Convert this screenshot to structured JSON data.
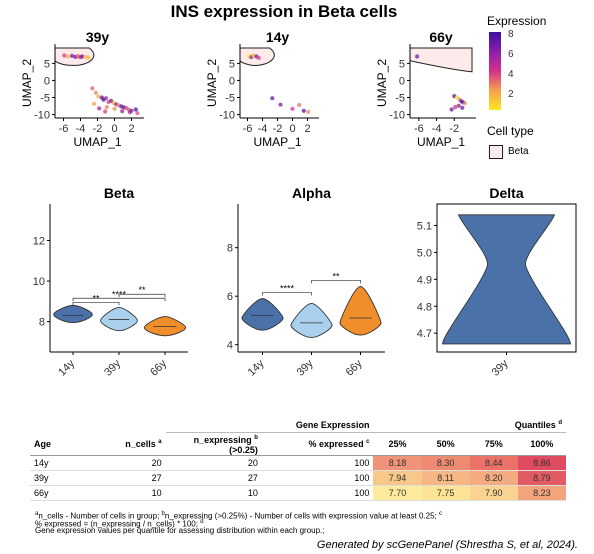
{
  "title": "INS expression in Beta cells",
  "umap_panels": [
    {
      "title": "39y"
    },
    {
      "title": "14y"
    },
    {
      "title": "66y"
    }
  ],
  "umap_xlabel": "UMAP_1",
  "umap_ylabel": "UMAP_2",
  "legend": {
    "expression_title": "Expression",
    "expression_ticks": [
      "8",
      "6",
      "4",
      "2"
    ],
    "celltype_title": "Cell type",
    "celltype_item": "Beta",
    "colors": {
      "low": "#fde725",
      "mid": "#d4308c",
      "high": "#3b0fa3"
    }
  },
  "violin_panels": [
    {
      "title": "Beta"
    },
    {
      "title": "Alpha"
    },
    {
      "title": "Delta"
    }
  ],
  "colors": {
    "14y": "#4a72a8",
    "39y": "#a9d1ee",
    "66y": "#ef8e2b",
    "delta": "#4a72a8"
  },
  "chart_data": [
    {
      "type": "scatter",
      "title": "39y",
      "xlabel": "UMAP_1",
      "ylabel": "UMAP_2",
      "xticks": [
        "-6",
        "-4",
        "-2",
        "0",
        "2"
      ],
      "yticks": [
        "5",
        "0",
        "-5",
        "-10"
      ],
      "xlim": [
        -7,
        3
      ],
      "ylim": [
        -11,
        9.5
      ],
      "points": [
        {
          "x": -5.9,
          "y": 7.3,
          "e": 4.6
        },
        {
          "x": -5.5,
          "y": 7.0,
          "e": 2.2
        },
        {
          "x": -5.0,
          "y": 7.2,
          "e": 6.9
        },
        {
          "x": -4.6,
          "y": 6.9,
          "e": 7.4
        },
        {
          "x": -4.3,
          "y": 7.1,
          "e": 3.8
        },
        {
          "x": -4.0,
          "y": 6.8,
          "e": 5.2
        },
        {
          "x": -3.8,
          "y": 7.0,
          "e": 7.3
        },
        {
          "x": -3.4,
          "y": 6.9,
          "e": 1.7
        },
        {
          "x": -3.1,
          "y": 6.7,
          "e": 2.1
        },
        {
          "x": -2.6,
          "y": -2.3,
          "e": 3.8
        },
        {
          "x": -2.2,
          "y": -3.6,
          "e": 3.0
        },
        {
          "x": -1.9,
          "y": -4.7,
          "e": 2.2
        },
        {
          "x": -1.5,
          "y": -5.0,
          "e": 7.4
        },
        {
          "x": -1.3,
          "y": -5.6,
          "e": 8.4
        },
        {
          "x": -1.0,
          "y": -5.2,
          "e": 6.1
        },
        {
          "x": -0.7,
          "y": -6.3,
          "e": 4.4
        },
        {
          "x": -0.4,
          "y": -6.0,
          "e": 7.1
        },
        {
          "x": -0.1,
          "y": -6.6,
          "e": 2.3
        },
        {
          "x": 0.2,
          "y": -7.0,
          "e": 6.4
        },
        {
          "x": 0.5,
          "y": -7.3,
          "e": 3.1
        },
        {
          "x": 0.8,
          "y": -7.6,
          "e": 7.7
        },
        {
          "x": 1.1,
          "y": -7.9,
          "e": 7.9
        },
        {
          "x": 1.4,
          "y": -8.1,
          "e": 4.3
        },
        {
          "x": 1.7,
          "y": -8.6,
          "e": 4.0
        },
        {
          "x": 2.0,
          "y": -8.9,
          "e": 7.3
        },
        {
          "x": -1.8,
          "y": -8.2,
          "e": 5.9
        },
        {
          "x": -0.9,
          "y": -7.8,
          "e": 3.2
        },
        {
          "x": 0.0,
          "y": -8.3,
          "e": 2.8
        },
        {
          "x": 0.9,
          "y": -9.0,
          "e": 6.1
        },
        {
          "x": 1.8,
          "y": -9.3,
          "e": 5.8
        },
        {
          "x": 2.5,
          "y": -8.5,
          "e": 8.1
        },
        {
          "x": 2.7,
          "y": -9.6,
          "e": 4.1
        },
        {
          "x": -2.4,
          "y": -6.8,
          "e": 2.4
        },
        {
          "x": -1.1,
          "y": -9.1,
          "e": 4.6
        }
      ],
      "outline": "top-left"
    },
    {
      "type": "scatter",
      "title": "14y",
      "xlabel": "UMAP_1",
      "ylabel": "UMAP_2",
      "xticks": [
        "-6",
        "-4",
        "-2",
        "0",
        "2"
      ],
      "yticks": [
        "5",
        "0",
        "-5",
        "-10"
      ],
      "xlim": [
        -7,
        3
      ],
      "ylim": [
        -11,
        9.5
      ],
      "points": [
        {
          "x": -5.8,
          "y": 7.1,
          "e": 1.1
        },
        {
          "x": -5.5,
          "y": 6.8,
          "e": 6.2
        },
        {
          "x": -5.2,
          "y": 7.3,
          "e": 2.1
        },
        {
          "x": -4.8,
          "y": 7.0,
          "e": 7.5
        },
        {
          "x": -4.5,
          "y": 6.6,
          "e": 4.2
        },
        {
          "x": -2.7,
          "y": -5.2,
          "e": 7.5
        },
        {
          "x": -1.6,
          "y": -7.1,
          "e": 6.8
        },
        {
          "x": 0.0,
          "y": -8.3,
          "e": 4.8
        },
        {
          "x": 0.9,
          "y": -7.2,
          "e": 3.3
        },
        {
          "x": 1.5,
          "y": -8.9,
          "e": 8.0
        },
        {
          "x": 2.1,
          "y": -9.2,
          "e": 2.8
        }
      ],
      "outline": "top-left"
    },
    {
      "type": "scatter",
      "title": "66y",
      "xlabel": "UMAP_1",
      "ylabel": "UMAP_2",
      "xticks": [
        "-6",
        "-4",
        "-2"
      ],
      "yticks": [
        "5",
        "0",
        "-5",
        "-10"
      ],
      "xlim": [
        -7,
        0
      ],
      "ylim": [
        -11,
        9.5
      ],
      "points": [
        {
          "x": -6.2,
          "y": 7.0,
          "e": 7.3
        },
        {
          "x": -2.0,
          "y": -4.6,
          "e": 7.8
        },
        {
          "x": -1.7,
          "y": -4.9,
          "e": 1.2
        },
        {
          "x": -1.4,
          "y": -5.6,
          "e": 3.2
        },
        {
          "x": -1.2,
          "y": -6.1,
          "e": 7.6
        },
        {
          "x": -1.0,
          "y": -6.4,
          "e": 8.2
        },
        {
          "x": -0.8,
          "y": -6.7,
          "e": 2.8
        },
        {
          "x": -1.5,
          "y": -7.4,
          "e": 6.4
        },
        {
          "x": -1.9,
          "y": -7.8,
          "e": 4.9
        },
        {
          "x": -2.3,
          "y": -8.5,
          "e": 7.2
        },
        {
          "x": -1.1,
          "y": -8.0,
          "e": 7.3
        }
      ],
      "outline": "top-band"
    },
    {
      "type": "violin",
      "title": "Beta",
      "categories": [
        "14y",
        "39y",
        "66y"
      ],
      "yticks": [
        8,
        10,
        12
      ],
      "ylim": [
        6.5,
        13.8
      ],
      "groups": [
        {
          "name": "14y",
          "min": 7.95,
          "max": 8.8,
          "peak": 8.35,
          "median": 8.3,
          "width": 0.42
        },
        {
          "name": "39y",
          "min": 7.55,
          "max": 8.7,
          "peak": 8.05,
          "median": 8.1,
          "width": 0.4
        },
        {
          "name": "66y",
          "min": 7.3,
          "max": 8.25,
          "peak": 7.7,
          "median": 7.75,
          "width": 0.45
        }
      ],
      "brackets": [
        {
          "from": 0,
          "to": 1,
          "y": 8.95,
          "label": "**"
        },
        {
          "from": 0,
          "to": 2,
          "y": 9.15,
          "label": "****"
        },
        {
          "from": 1,
          "to": 2,
          "y": 9.35,
          "label": "**"
        }
      ]
    },
    {
      "type": "violin",
      "title": "Alpha",
      "categories": [
        "14y",
        "39y",
        "66y"
      ],
      "yticks": [
        4,
        6,
        8
      ],
      "ylim": [
        3.7,
        9.8
      ],
      "groups": [
        {
          "name": "14y",
          "min": 4.6,
          "max": 5.9,
          "peak": 5.1,
          "median": 5.2,
          "width": 0.42
        },
        {
          "name": "39y",
          "min": 4.3,
          "max": 5.7,
          "peak": 4.8,
          "median": 4.9,
          "width": 0.42
        },
        {
          "name": "66y",
          "min": 4.4,
          "max": 6.4,
          "peak": 4.9,
          "median": 5.1,
          "width": 0.42
        }
      ],
      "brackets": [
        {
          "from": 0,
          "to": 1,
          "y": 6.15,
          "label": "****"
        },
        {
          "from": 1,
          "to": 2,
          "y": 6.65,
          "label": "**"
        }
      ]
    },
    {
      "type": "violin",
      "title": "Delta",
      "categories": [
        "39y"
      ],
      "yticks": [
        4.7,
        4.8,
        4.9,
        5.0,
        5.1
      ],
      "yticklabels": [
        "4.7",
        "4.8",
        "4.9",
        "5.0",
        "5.1"
      ],
      "ylim": [
        4.63,
        5.18
      ],
      "groups": [
        {
          "name": "39y",
          "min": 4.66,
          "max": 5.14,
          "peak": 4.68,
          "waist": 4.95,
          "median": 4.9,
          "width": 0.46
        }
      ]
    },
    {
      "type": "table",
      "headers": {
        "gene_expression": "Gene Expression",
        "quantiles": "Quantiles",
        "quantiles_note": "d",
        "age": "Age",
        "n_cells": "n_cells",
        "n_cells_note": "a",
        "n_expressing_line1": "n_expressing",
        "n_expressing_line2": "(>0.25)",
        "n_expressing_note": "b",
        "pct": "% expressed",
        "pct_note": "c",
        "q25": "25%",
        "q50": "50%",
        "q75": "75%",
        "q100": "100%"
      },
      "rows": [
        {
          "age": "14y",
          "n_cells": "20",
          "n_expressing": "20",
          "pct": "100",
          "q25": "8.18",
          "q50": "8.30",
          "q75": "8.44",
          "q100": "8.86"
        },
        {
          "age": "39y",
          "n_cells": "27",
          "n_expressing": "27",
          "pct": "100",
          "q25": "7.94",
          "q50": "8.11",
          "q75": "8.20",
          "q100": "8.79"
        },
        {
          "age": "66y",
          "n_cells": "10",
          "n_expressing": "10",
          "pct": "100",
          "q25": "7.70",
          "q50": "7.75",
          "q75": "7.90",
          "q100": "8.23"
        }
      ],
      "heat_colors": {
        "14y": [
          "#f19379",
          "#ef8a72",
          "#ec7268",
          "#e04b62"
        ],
        "39y": [
          "#f8c78a",
          "#f5b784",
          "#f4ab7f",
          "#e25a63"
        ],
        "66y": [
          "#feeb9e",
          "#fde495",
          "#fbd391",
          "#f3a47d"
        ]
      }
    }
  ],
  "footnotes": {
    "line1_a": "a",
    "line1_text_a": "n_cells - Number of cells in group; ",
    "line1_b": "b",
    "line1_text_b": "n_expressing (>0.25%) - Number of cells with expression value at least 0.25; ",
    "line1_c": "c",
    "line2": "% expressed = (n_expressing / n_cells) * 100; ",
    "line2_d": "d",
    "line3": "Gene expression values per quantile for assessing distribution within each group.;"
  },
  "credit": "Generated by scGenePanel (Shrestha S, et al, 2024)."
}
